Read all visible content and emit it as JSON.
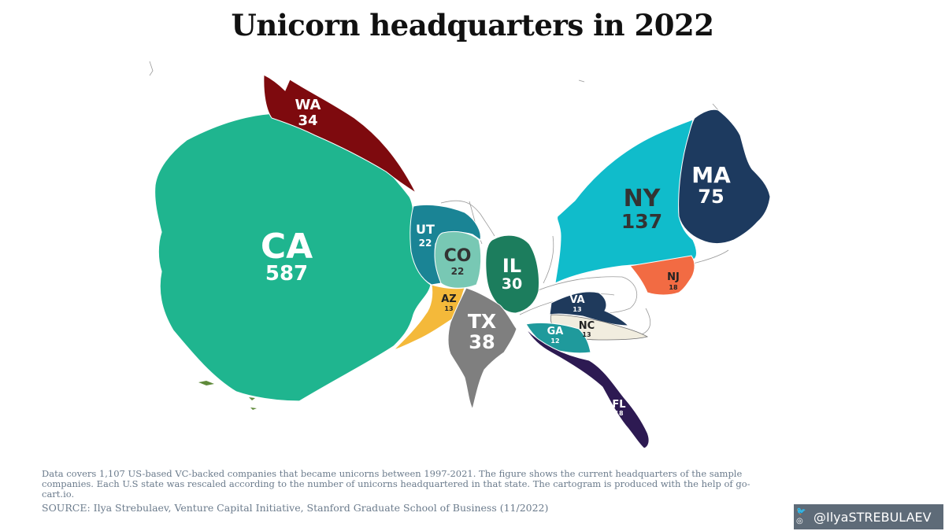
{
  "title": "Unicorn headquarters in 2022",
  "states": [
    {
      "code": "CA",
      "count": "587",
      "color": "#1fb58f"
    },
    {
      "code": "NY",
      "count": "137",
      "color": "#10bccb"
    },
    {
      "code": "MA",
      "count": "75",
      "color": "#1d3a5f"
    },
    {
      "code": "TX",
      "count": "38",
      "color": "#7f7f7f"
    },
    {
      "code": "WA",
      "count": "34",
      "color": "#7e0a0e"
    },
    {
      "code": "IL",
      "count": "30",
      "color": "#1c7d5d"
    },
    {
      "code": "UT",
      "count": "22",
      "color": "#1a8495"
    },
    {
      "code": "CO",
      "count": "22",
      "color": "#78c8b4"
    },
    {
      "code": "NJ",
      "count": "18",
      "color": "#f26b43"
    },
    {
      "code": "FL",
      "count": "18",
      "color": "#2d1a52"
    },
    {
      "code": "AZ",
      "count": "13",
      "color": "#f4b93a"
    },
    {
      "code": "VA",
      "count": "13",
      "color": "#1f3a5c"
    },
    {
      "code": "NC",
      "count": "13",
      "color": "#f1eddf"
    },
    {
      "code": "GA",
      "count": "12",
      "color": "#1f9a9c"
    }
  ],
  "note": "Data covers 1,107 US-based VC-backed companies that became unicorns between 1997-2021. The figure shows the current headquarters of the sample companies. Each U.S state was rescaled according to the number of unicorns headquartered in that state. The cartogram is produced with the help of go-cart.io.",
  "source": "SOURCE: Ilya Strebulaev, Venture Capital Initiative, Stanford Graduate School of Business (11/2022)",
  "handle": "@IlyaSTREBULAEV",
  "handle_icons": [
    "twitter-icon",
    "instagram-icon"
  ]
}
